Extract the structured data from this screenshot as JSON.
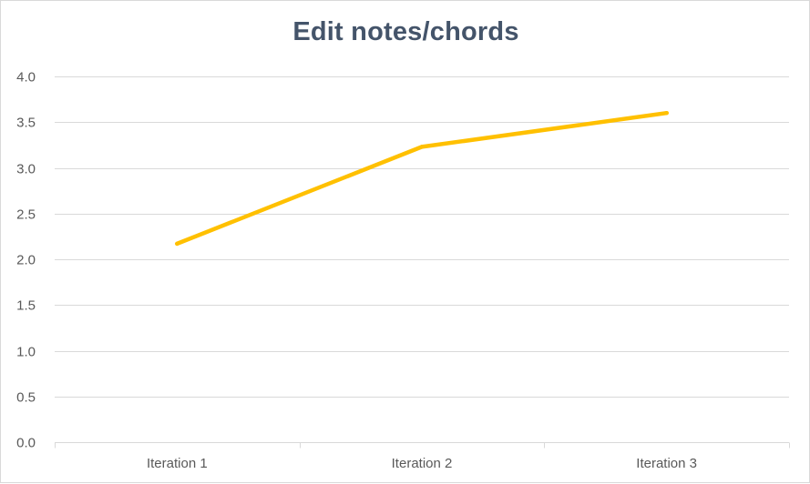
{
  "chart_data": {
    "type": "line",
    "title": "Edit notes/chords",
    "xlabel": "",
    "ylabel": "",
    "categories": [
      "Iteration 1",
      "Iteration 2",
      "Iteration 3"
    ],
    "series": [
      {
        "values": [
          2.17,
          3.23,
          3.6
        ],
        "color": "#ffc000"
      }
    ],
    "ylim": [
      0,
      4
    ],
    "yticks": [
      "0.0",
      "0.5",
      "1.0",
      "1.5",
      "2.0",
      "2.5",
      "3.0",
      "3.5",
      "4.0"
    ],
    "grid": true,
    "legend": "none",
    "colors": {
      "title": "#44546a",
      "gridline": "#d9d9d9",
      "tick_text": "#595959",
      "series": "#ffc000"
    }
  }
}
